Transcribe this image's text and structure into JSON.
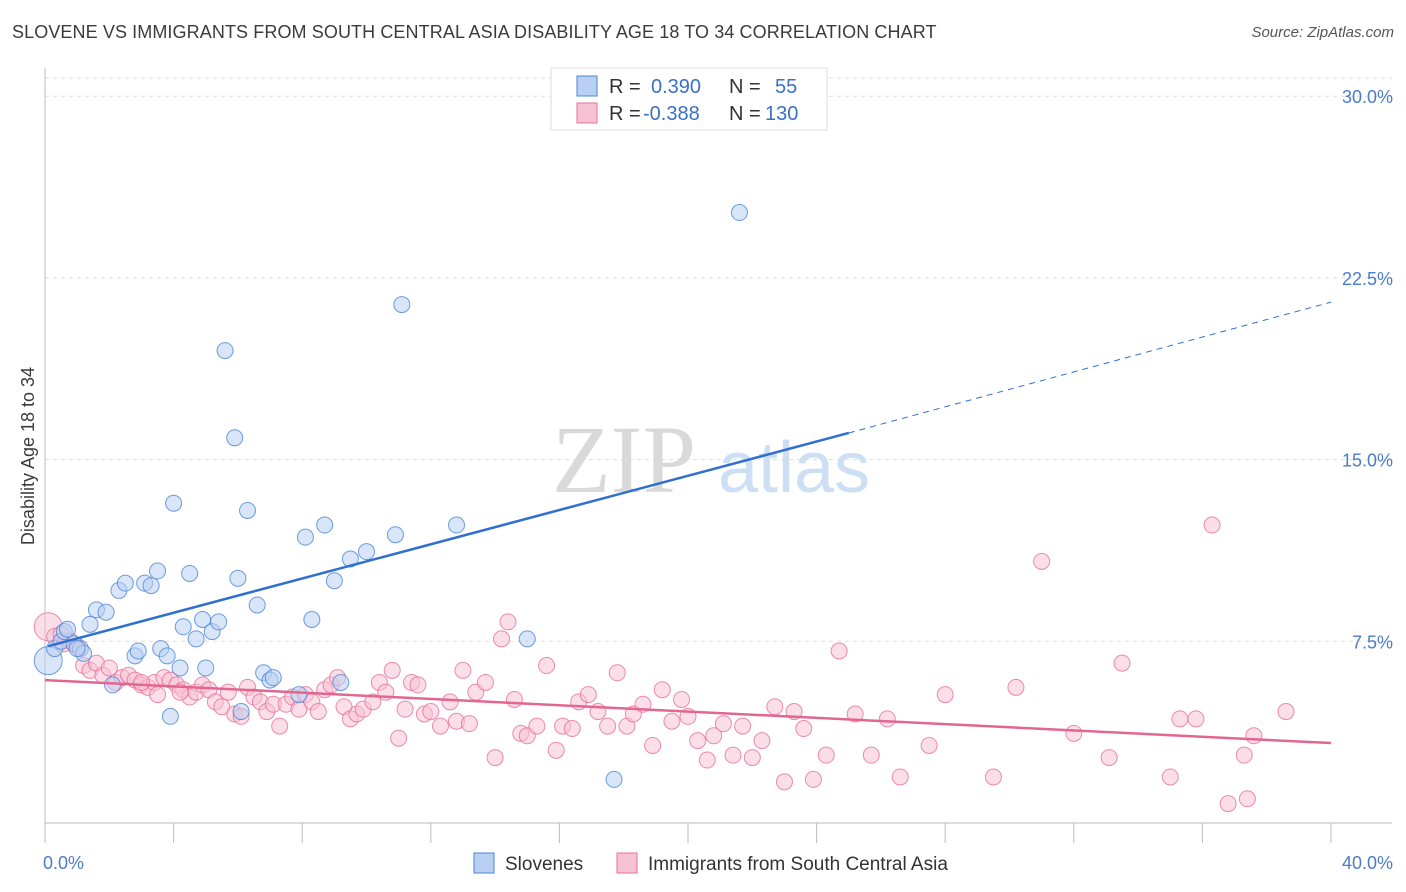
{
  "title": "SLOVENE VS IMMIGRANTS FROM SOUTH CENTRAL ASIA DISABILITY AGE 18 TO 34 CORRELATION CHART",
  "source": "Source: ZipAtlas.com",
  "watermark": {
    "zip": "ZIP",
    "atlas": "atlas"
  },
  "colors": {
    "blue": "#4a86d8",
    "blue_fill": "#b9d0f2",
    "blue_line": "#2f6fce",
    "pink": "#e86f9a",
    "pink_fill": "#f7c2d3",
    "pink_line": "#e2678f",
    "tick_text": "#4a7cc9",
    "grid": "#dddddd"
  },
  "legend_box": {
    "rows": [
      {
        "r_label": "R =",
        "r_value": "0.390",
        "n_label": "N =",
        "n_value": "55",
        "series": "blue"
      },
      {
        "r_label": "R =",
        "r_value": "-0.388",
        "n_label": "N =",
        "n_value": "130",
        "series": "pink"
      }
    ]
  },
  "chart_data": {
    "type": "scatter",
    "title": "SLOVENE VS IMMIGRANTS FROM SOUTH CENTRAL ASIA DISABILITY AGE 18 TO 34 CORRELATION CHART",
    "xlabel": "",
    "ylabel": "Disability Age 18 to 34",
    "xlim": [
      0,
      40
    ],
    "ylim": [
      0,
      31
    ],
    "x_tick_labels": [
      "0.0%",
      "40.0%"
    ],
    "y_ticks": [
      7.5,
      15.0,
      22.5,
      30.0
    ],
    "y_tick_labels": [
      "7.5%",
      "15.0%",
      "22.5%",
      "30.0%"
    ],
    "grid": true,
    "legend_position": "bottom",
    "series": [
      {
        "name": "Slovenes",
        "color": "blue",
        "r": 0.39,
        "n": 55,
        "trend": {
          "x0": 0.1,
          "y0": 7.3,
          "x1": 25.0,
          "y1": 16.1,
          "dash_x_end": 40.0,
          "dash_y_end": 21.5
        },
        "points": [
          [
            0.1,
            6.7
          ],
          [
            0.3,
            7.2
          ],
          [
            0.5,
            7.5
          ],
          [
            0.6,
            7.9
          ],
          [
            0.7,
            8.0
          ],
          [
            0.9,
            7.4
          ],
          [
            1.1,
            7.2
          ],
          [
            1.2,
            7.0
          ],
          [
            1.4,
            8.2
          ],
          [
            1.6,
            8.8
          ],
          [
            1.9,
            8.7
          ],
          [
            2.1,
            5.7
          ],
          [
            2.3,
            9.6
          ],
          [
            2.5,
            9.9
          ],
          [
            2.8,
            6.9
          ],
          [
            2.9,
            7.1
          ],
          [
            3.1,
            9.9
          ],
          [
            3.3,
            9.8
          ],
          [
            3.5,
            10.4
          ],
          [
            3.6,
            7.2
          ],
          [
            3.8,
            6.9
          ],
          [
            3.9,
            4.4
          ],
          [
            4.0,
            13.2
          ],
          [
            4.2,
            6.4
          ],
          [
            4.3,
            8.1
          ],
          [
            4.5,
            10.3
          ],
          [
            4.7,
            7.6
          ],
          [
            4.9,
            8.4
          ],
          [
            5.0,
            6.4
          ],
          [
            5.2,
            7.9
          ],
          [
            5.4,
            8.3
          ],
          [
            5.6,
            19.5
          ],
          [
            5.9,
            15.9
          ],
          [
            6.0,
            10.1
          ],
          [
            6.1,
            4.6
          ],
          [
            6.3,
            12.9
          ],
          [
            6.6,
            9.0
          ],
          [
            6.8,
            6.2
          ],
          [
            7.0,
            5.9
          ],
          [
            7.1,
            6.0
          ],
          [
            7.9,
            5.3
          ],
          [
            8.1,
            11.8
          ],
          [
            8.3,
            8.4
          ],
          [
            8.7,
            12.3
          ],
          [
            9.0,
            10.0
          ],
          [
            9.2,
            5.8
          ],
          [
            9.5,
            10.9
          ],
          [
            10.0,
            11.2
          ],
          [
            10.9,
            11.9
          ],
          [
            11.1,
            21.4
          ],
          [
            12.8,
            12.3
          ],
          [
            15.0,
            7.6
          ],
          [
            17.7,
            1.8
          ],
          [
            21.6,
            25.2
          ],
          [
            1.0,
            7.2
          ]
        ]
      },
      {
        "name": "Immigrants from South Central Asia",
        "color": "pink",
        "r": -0.388,
        "n": 130,
        "trend": {
          "x0": 0.0,
          "y0": 5.9,
          "x1": 40.0,
          "y1": 3.3
        },
        "points": [
          [
            0.1,
            8.1
          ],
          [
            0.3,
            7.7
          ],
          [
            0.5,
            7.8
          ],
          [
            0.6,
            7.4
          ],
          [
            0.8,
            7.5
          ],
          [
            1.0,
            7.3
          ],
          [
            1.2,
            6.5
          ],
          [
            1.4,
            6.3
          ],
          [
            1.6,
            6.6
          ],
          [
            1.8,
            6.1
          ],
          [
            2.0,
            6.4
          ],
          [
            2.2,
            5.8
          ],
          [
            2.4,
            6.0
          ],
          [
            2.6,
            6.1
          ],
          [
            2.8,
            5.9
          ],
          [
            3.0,
            5.7
          ],
          [
            3.2,
            5.6
          ],
          [
            3.4,
            5.8
          ],
          [
            3.5,
            5.3
          ],
          [
            3.7,
            6.0
          ],
          [
            3.9,
            5.9
          ],
          [
            4.1,
            5.7
          ],
          [
            4.3,
            5.5
          ],
          [
            4.5,
            5.2
          ],
          [
            4.7,
            5.4
          ],
          [
            4.9,
            5.7
          ],
          [
            5.1,
            5.5
          ],
          [
            5.3,
            5.0
          ],
          [
            5.5,
            4.8
          ],
          [
            5.7,
            5.4
          ],
          [
            5.9,
            4.5
          ],
          [
            6.1,
            4.4
          ],
          [
            6.3,
            5.6
          ],
          [
            6.5,
            5.2
          ],
          [
            6.7,
            5.0
          ],
          [
            6.9,
            4.6
          ],
          [
            7.1,
            4.9
          ],
          [
            7.3,
            4.0
          ],
          [
            7.5,
            4.9
          ],
          [
            7.7,
            5.2
          ],
          [
            7.9,
            4.7
          ],
          [
            8.1,
            5.3
          ],
          [
            8.3,
            5.0
          ],
          [
            8.5,
            4.6
          ],
          [
            8.7,
            5.5
          ],
          [
            8.9,
            5.7
          ],
          [
            9.1,
            6.0
          ],
          [
            9.3,
            4.8
          ],
          [
            9.5,
            4.3
          ],
          [
            9.7,
            4.5
          ],
          [
            9.9,
            4.7
          ],
          [
            10.2,
            5.0
          ],
          [
            10.4,
            5.8
          ],
          [
            10.6,
            5.4
          ],
          [
            10.8,
            6.3
          ],
          [
            11.0,
            3.5
          ],
          [
            11.2,
            4.7
          ],
          [
            11.4,
            5.8
          ],
          [
            11.6,
            5.7
          ],
          [
            11.8,
            4.5
          ],
          [
            12.0,
            4.6
          ],
          [
            12.3,
            4.0
          ],
          [
            12.6,
            5.0
          ],
          [
            12.8,
            4.2
          ],
          [
            13.0,
            6.3
          ],
          [
            13.2,
            4.1
          ],
          [
            13.4,
            5.4
          ],
          [
            13.7,
            5.8
          ],
          [
            14.0,
            2.7
          ],
          [
            14.2,
            7.6
          ],
          [
            14.4,
            8.3
          ],
          [
            14.6,
            5.1
          ],
          [
            14.8,
            3.7
          ],
          [
            15.0,
            3.6
          ],
          [
            15.3,
            4.0
          ],
          [
            15.6,
            6.5
          ],
          [
            15.9,
            3.0
          ],
          [
            16.1,
            4.0
          ],
          [
            16.4,
            3.9
          ],
          [
            16.6,
            5.0
          ],
          [
            16.9,
            5.3
          ],
          [
            17.2,
            4.6
          ],
          [
            17.5,
            4.0
          ],
          [
            17.8,
            6.2
          ],
          [
            18.1,
            4.0
          ],
          [
            18.3,
            4.5
          ],
          [
            18.6,
            4.9
          ],
          [
            18.9,
            3.2
          ],
          [
            19.2,
            5.5
          ],
          [
            19.5,
            4.2
          ],
          [
            19.8,
            5.1
          ],
          [
            20.0,
            4.4
          ],
          [
            20.3,
            3.4
          ],
          [
            20.6,
            2.6
          ],
          [
            20.8,
            3.6
          ],
          [
            21.1,
            4.1
          ],
          [
            21.4,
            2.8
          ],
          [
            21.7,
            4.0
          ],
          [
            22.0,
            2.7
          ],
          [
            22.3,
            3.4
          ],
          [
            22.7,
            4.8
          ],
          [
            23.0,
            1.7
          ],
          [
            23.3,
            4.6
          ],
          [
            23.6,
            3.9
          ],
          [
            23.9,
            1.8
          ],
          [
            24.3,
            2.8
          ],
          [
            24.7,
            7.1
          ],
          [
            25.2,
            4.5
          ],
          [
            25.7,
            2.8
          ],
          [
            26.2,
            4.3
          ],
          [
            26.6,
            1.9
          ],
          [
            27.5,
            3.2
          ],
          [
            28.0,
            5.3
          ],
          [
            29.5,
            1.9
          ],
          [
            30.2,
            5.6
          ],
          [
            31.0,
            10.8
          ],
          [
            32.0,
            3.7
          ],
          [
            33.1,
            2.7
          ],
          [
            33.5,
            6.6
          ],
          [
            35.0,
            1.9
          ],
          [
            35.3,
            4.3
          ],
          [
            35.8,
            4.3
          ],
          [
            36.3,
            12.3
          ],
          [
            36.8,
            0.8
          ],
          [
            37.3,
            2.8
          ],
          [
            37.4,
            1.0
          ],
          [
            37.6,
            3.6
          ],
          [
            38.6,
            4.6
          ],
          [
            3.0,
            5.8
          ],
          [
            4.2,
            5.4
          ]
        ]
      }
    ]
  }
}
